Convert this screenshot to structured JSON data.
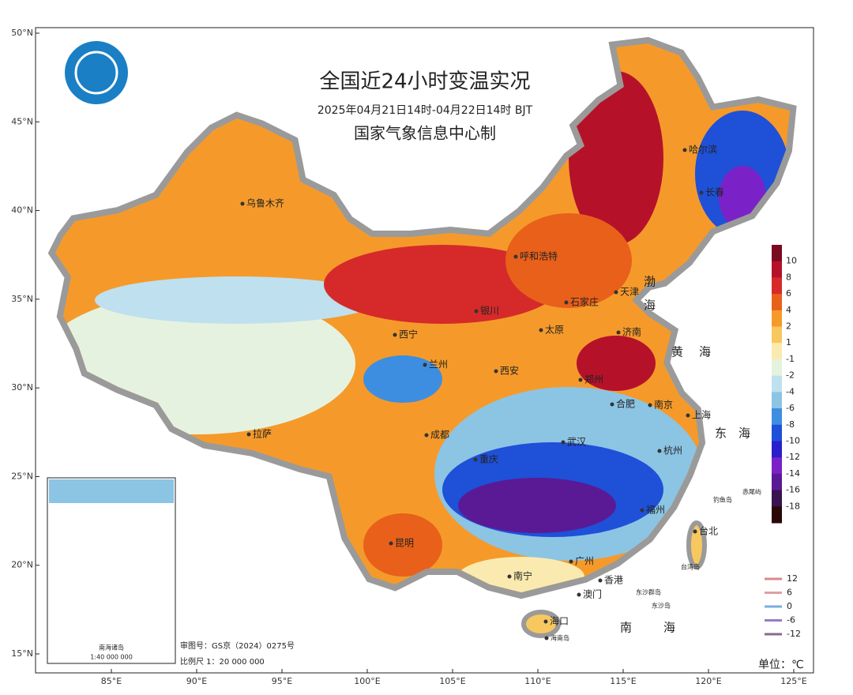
{
  "header": {
    "title": "全国近24小时变温实况",
    "subtitle": "2025年04月21日14时-04月22日14时  BJT",
    "issuer": "国家气象信息中心制"
  },
  "axes": {
    "lat_ticks": [
      {
        "value": 50,
        "label": "50°N"
      },
      {
        "value": 45,
        "label": "45°N"
      },
      {
        "value": 40,
        "label": "40°N"
      },
      {
        "value": 35,
        "label": "35°N"
      },
      {
        "value": 30,
        "label": "30°N"
      },
      {
        "value": 25,
        "label": "25°N"
      },
      {
        "value": 20,
        "label": "20°N"
      },
      {
        "value": 15,
        "label": "15°N"
      }
    ],
    "lon_ticks": [
      {
        "value": 85,
        "label": "85°E"
      },
      {
        "value": 90,
        "label": "90°E"
      },
      {
        "value": 95,
        "label": "95°E"
      },
      {
        "value": 100,
        "label": "100°E"
      },
      {
        "value": 105,
        "label": "105°E"
      },
      {
        "value": 110,
        "label": "110°E"
      },
      {
        "value": 115,
        "label": "115°E"
      },
      {
        "value": 120,
        "label": "120°E"
      },
      {
        "value": 125,
        "label": "125°E"
      }
    ]
  },
  "cities": [
    "乌鲁木齐",
    "哈尔滨",
    "长春",
    "呼和浩特",
    "天津",
    "石家庄",
    "银川",
    "太原",
    "济南",
    "西宁",
    "兰州",
    "西安",
    "郑州",
    "合肥",
    "南京",
    "上海",
    "成都",
    "拉萨",
    "武汉",
    "杭州",
    "重庆",
    "福州",
    "台北",
    "昆明",
    "南宁",
    "广州",
    "香港",
    "澳门",
    "海口",
    "海南岛"
  ],
  "seas": [
    "渤",
    "海",
    "黄",
    "海",
    "东",
    "海",
    "南",
    "海"
  ],
  "islands": [
    "钓鱼岛",
    "赤尾屿",
    "台湾岛",
    "东沙群岛",
    "东沙岛"
  ],
  "inset": {
    "title": "南海诸岛",
    "scale": "1:40 000 000"
  },
  "footer": {
    "approval": "审图号：GS京（2024）0275号",
    "scale": "比例尺  1：20 000 000",
    "unit": "单位：℃"
  },
  "colorbar": {
    "levels": [
      10,
      8,
      6,
      4,
      2,
      1,
      -1,
      -2,
      -4,
      -6,
      -8,
      -10,
      -12,
      -14,
      -16,
      -18
    ],
    "colors": [
      "#7a0a20",
      "#b5122a",
      "#d62a2a",
      "#e8601a",
      "#f59a2a",
      "#f7c860",
      "#fbeab0",
      "#e6f2e0",
      "#bfe0ee",
      "#8cc4e4",
      "#3d8ee0",
      "#1f50d8",
      "#2a1fcc",
      "#7a22c8",
      "#5a1a96",
      "#3a124f",
      "#2a0808"
    ]
  },
  "contours": {
    "levels": [
      12,
      6,
      0,
      -6,
      -12
    ],
    "colors": [
      "#d88a8a",
      "#e0a0a0",
      "#7aaee0",
      "#9a7ac8",
      "#8a6a8a"
    ]
  }
}
